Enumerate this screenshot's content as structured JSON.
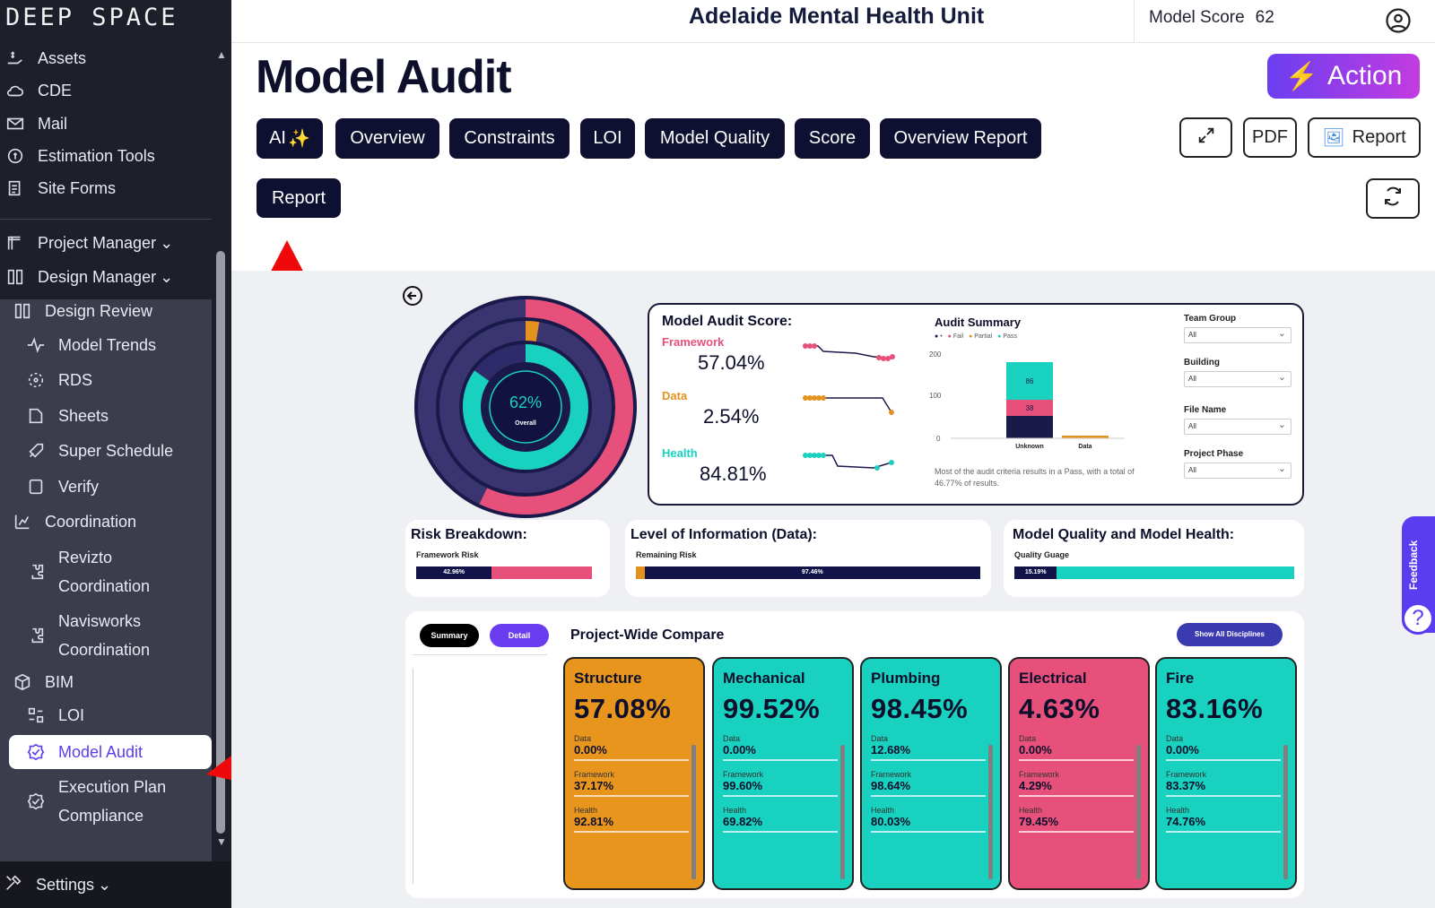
{
  "brand": "DEEP SPACE",
  "sidebar": {
    "items": [
      {
        "label": "Assets"
      },
      {
        "label": "CDE"
      },
      {
        "label": "Mail"
      },
      {
        "label": "Estimation Tools"
      },
      {
        "label": "Site Forms"
      },
      {
        "label": "Project Manager"
      },
      {
        "label": "Design Manager"
      },
      {
        "label": "Design Review"
      },
      {
        "label": "Model Trends"
      },
      {
        "label": "RDS"
      },
      {
        "label": "Sheets"
      },
      {
        "label": "Super Schedule"
      },
      {
        "label": "Verify"
      },
      {
        "label": "Coordination"
      },
      {
        "label": "Revizto",
        "label2": "Coordination"
      },
      {
        "label": "Navisworks",
        "label2": "Coordination"
      },
      {
        "label": "BIM"
      },
      {
        "label": "LOI"
      },
      {
        "label": "Model Audit"
      },
      {
        "label": "Execution Plan",
        "label2": "Compliance"
      }
    ],
    "settings_label": "Settings"
  },
  "header": {
    "project": "Adelaide Mental Health Unit",
    "score_label": "Model Score",
    "score_value": "62"
  },
  "page": {
    "title": "Model Audit",
    "action_label": "Action",
    "tabs": [
      "AI",
      "Overview",
      "Constraints",
      "LOI",
      "Model Quality",
      "Score",
      "Overview Report"
    ],
    "pdf_label": "PDF",
    "report_label": "Report",
    "active_report_label": "Report"
  },
  "dashboard": {
    "donut_pct": "62%",
    "donut_sub": "Overall",
    "score_title": "Model Audit Score:",
    "metrics": [
      {
        "name": "Framework",
        "value": "57.04%",
        "color": "#e8507c"
      },
      {
        "name": "Data",
        "value": "2.54%",
        "color": "#e3921e"
      },
      {
        "name": "Health",
        "value": "84.81%",
        "color": "#18d1bf"
      }
    ],
    "summary_title": "Audit Summary",
    "legend": [
      "•",
      "Fail",
      "Partial",
      "Pass"
    ],
    "y_ticks": [
      "200",
      "100",
      "0"
    ],
    "bar_labels": [
      "86",
      "38"
    ],
    "x_cats": [
      "Unknown",
      "Data"
    ],
    "summary_note": "Most of the audit criteria results in a Pass, with a total of 46.77% of results.",
    "filters": [
      {
        "label": "Team Group",
        "value": "All"
      },
      {
        "label": "Building",
        "value": "All"
      },
      {
        "label": "File Name",
        "value": "All"
      },
      {
        "label": "Project Phase",
        "value": "All"
      }
    ],
    "risk": {
      "title": "Risk Breakdown:",
      "sub": "Framework Risk",
      "pct": "42.96%",
      "fill": 0.4296
    },
    "loi": {
      "title": "Level of Information (Data):",
      "sub": "Remaining Risk",
      "pct": "97.46%",
      "fill": 0.9746
    },
    "mq": {
      "title": "Model Quality and Model Health:",
      "sub": "Quality Guage",
      "pct": "15.19%",
      "fill": 0.1519
    },
    "compare": {
      "summary_btn": "Summary",
      "detail_btn": "Detail",
      "title": "Project-Wide Compare",
      "show_all": "Show All Disciplines",
      "row_labels": [
        "Data",
        "Framework",
        "Health"
      ],
      "disciplines": [
        {
          "name": "Structure",
          "pct": "57.08%",
          "data": "0.00%",
          "framework": "37.17%",
          "health": "92.81%",
          "color": "#e8951e"
        },
        {
          "name": "Mechanical",
          "pct": "99.52%",
          "data": "0.00%",
          "framework": "99.60%",
          "health": "69.82%",
          "color": "#18d1bf"
        },
        {
          "name": "Plumbing",
          "pct": "98.45%",
          "data": "12.68%",
          "framework": "98.64%",
          "health": "80.03%",
          "color": "#18d1bf"
        },
        {
          "name": "Electrical",
          "pct": "4.63%",
          "data": "0.00%",
          "framework": "4.29%",
          "health": "79.45%",
          "color": "#e8507c"
        },
        {
          "name": "Fire",
          "pct": "83.16%",
          "data": "0.00%",
          "framework": "83.37%",
          "health": "74.76%",
          "color": "#18d1bf"
        }
      ]
    }
  },
  "feedback_label": "Feedback",
  "help_label": "?"
}
